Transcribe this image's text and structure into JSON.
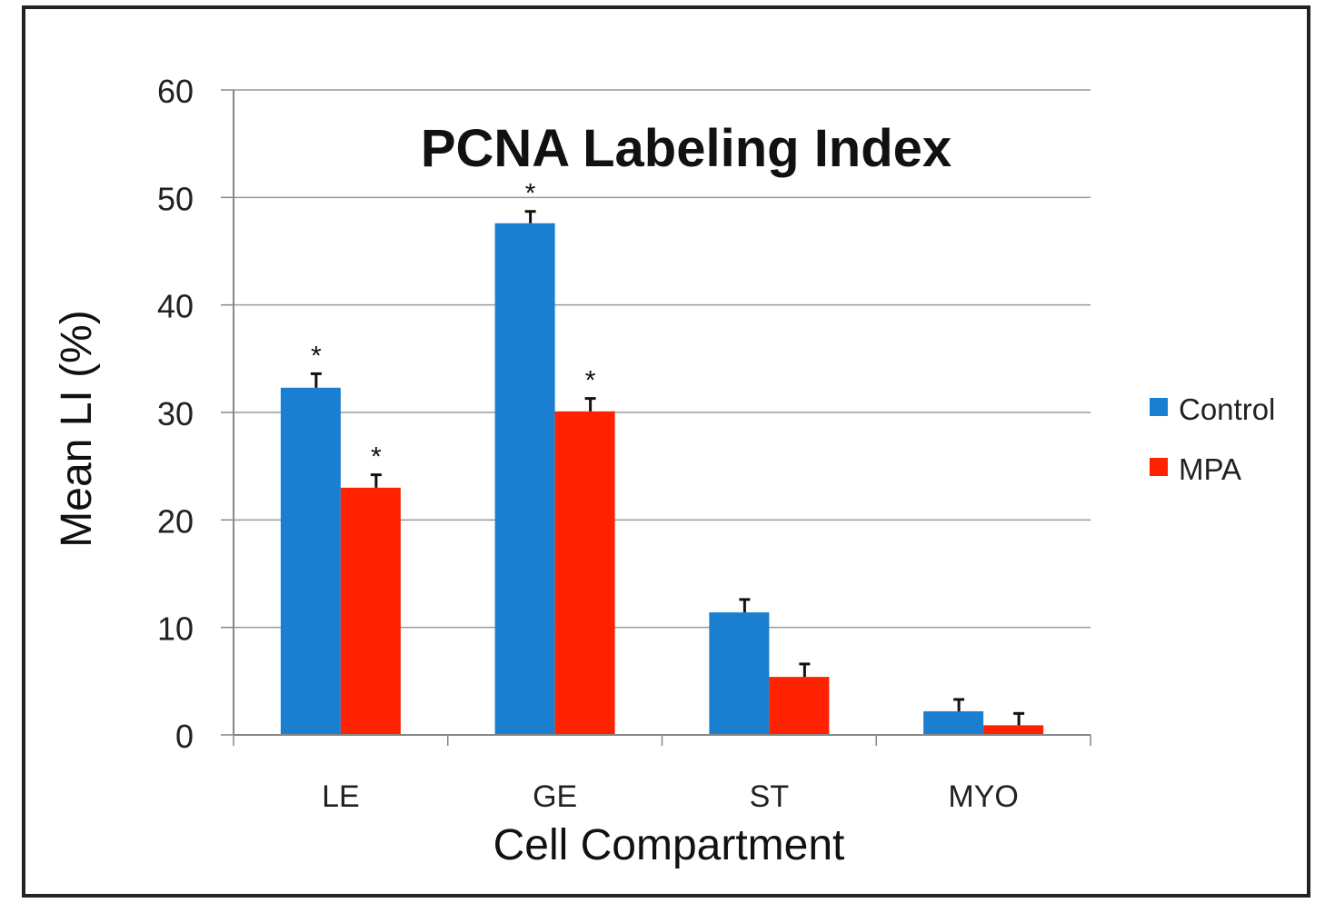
{
  "chart_data": {
    "type": "bar",
    "title": "PCNA Labeling Index",
    "xlabel": "Cell Compartment",
    "ylabel": "Mean LI (%)",
    "categories": [
      "LE",
      "GE",
      "ST",
      "MYO"
    ],
    "ylim": [
      0,
      60
    ],
    "yticks": [
      0,
      10,
      20,
      30,
      40,
      50,
      60
    ],
    "grid": true,
    "legend_position": "right",
    "series": [
      {
        "name": "Control",
        "color": "#1a7fd0",
        "values": [
          32.3,
          47.6,
          11.4,
          2.2
        ],
        "errors": [
          1.3,
          1.1,
          1.2,
          1.1
        ],
        "annotations": [
          "*",
          "*",
          "",
          ""
        ]
      },
      {
        "name": "MPA",
        "color": "#ff2200",
        "values": [
          23.0,
          30.1,
          5.4,
          0.9
        ],
        "errors": [
          1.2,
          1.2,
          1.2,
          1.1
        ],
        "annotations": [
          "*",
          "*",
          "",
          ""
        ]
      }
    ]
  }
}
